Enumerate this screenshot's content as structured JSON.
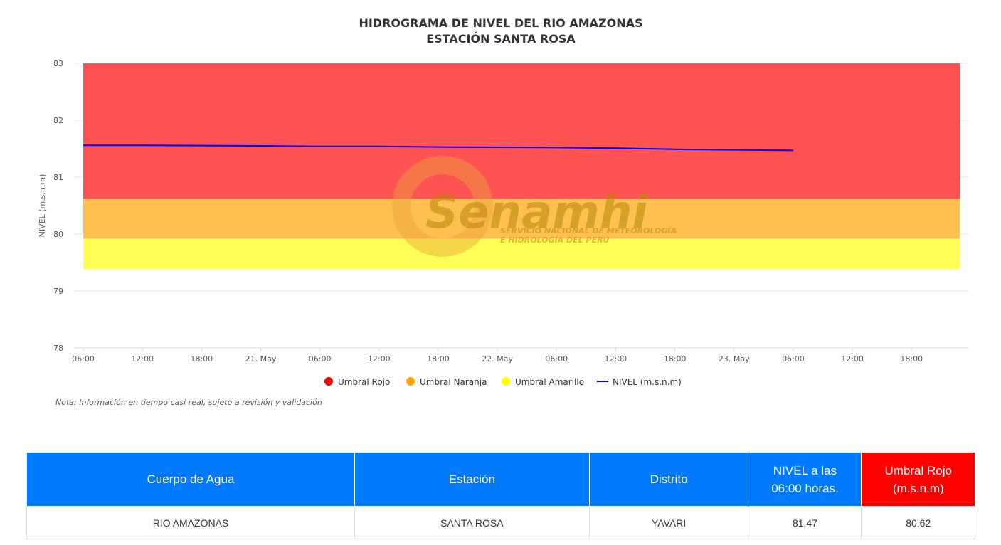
{
  "chart_data": {
    "type": "line",
    "title_line1": "HIDROGRAMA DE NIVEL DEL RIO AMAZONAS",
    "title_line2": "ESTACIÓN SANTA ROSA",
    "ylabel": "NIVEL (m.s.n.m)",
    "ylim": [
      78,
      83
    ],
    "yticks": [
      78,
      79,
      80,
      81,
      82,
      83
    ],
    "x_range_hours": [
      0,
      72
    ],
    "xticks": [
      {
        "h": 0,
        "label": "06:00"
      },
      {
        "h": 6,
        "label": "12:00"
      },
      {
        "h": 12,
        "label": "18:00"
      },
      {
        "h": 18,
        "label": "21. May"
      },
      {
        "h": 24,
        "label": "06:00"
      },
      {
        "h": 30,
        "label": "12:00"
      },
      {
        "h": 36,
        "label": "18:00"
      },
      {
        "h": 42,
        "label": "22. May"
      },
      {
        "h": 48,
        "label": "06:00"
      },
      {
        "h": 54,
        "label": "12:00"
      },
      {
        "h": 60,
        "label": "18:00"
      },
      {
        "h": 66,
        "label": "23. May"
      },
      {
        "h": 72,
        "label": "06:00"
      },
      {
        "h": 78,
        "label": "12:00"
      },
      {
        "h": 84,
        "label": "18:00"
      }
    ],
    "x_axis_end_hour": 89,
    "bands": [
      {
        "name": "Umbral Rojo",
        "from": 80.62,
        "to": 83,
        "color": "#ff5252",
        "legend_color": "#ee0000"
      },
      {
        "name": "Umbral Naranja",
        "from": 79.92,
        "to": 80.62,
        "color": "#ffc04f",
        "legend_color": "#ffa500"
      },
      {
        "name": "Umbral Amarillo",
        "from": 79.38,
        "to": 79.92,
        "color": "#ffff55",
        "legend_color": "#ffff00"
      }
    ],
    "series": [
      {
        "name": "NIVEL (m.s.n.m)",
        "color": "#0000ff",
        "x_hours": [
          0,
          6,
          12,
          18,
          24,
          30,
          36,
          42,
          48,
          54,
          60,
          66,
          72
        ],
        "y": [
          81.56,
          81.56,
          81.555,
          81.55,
          81.54,
          81.54,
          81.53,
          81.525,
          81.52,
          81.51,
          81.49,
          81.48,
          81.47
        ]
      }
    ]
  },
  "watermark": {
    "name": "Senamhi",
    "line1": "SERVICIO NACIONAL DE METEOROLOGÍA",
    "line2": "E HIDROLOGÍA DEL PERÚ"
  },
  "note": "Nota: Información en tiempo casi real, sujeto a revisión y validación",
  "table": {
    "headers": {
      "cuerpo": "Cuerpo de Agua",
      "estacion": "Estación",
      "distrito": "Distrito",
      "nivel_1": "NIVEL a las",
      "nivel_2": "06:00 horas.",
      "umbral_1": "Umbral Rojo",
      "umbral_2": "(m.s.n.m)"
    },
    "row": {
      "cuerpo": "RIO AMAZONAS",
      "estacion": "SANTA ROSA",
      "distrito": "YAVARI",
      "nivel": "81.47",
      "umbral": "80.62"
    }
  }
}
